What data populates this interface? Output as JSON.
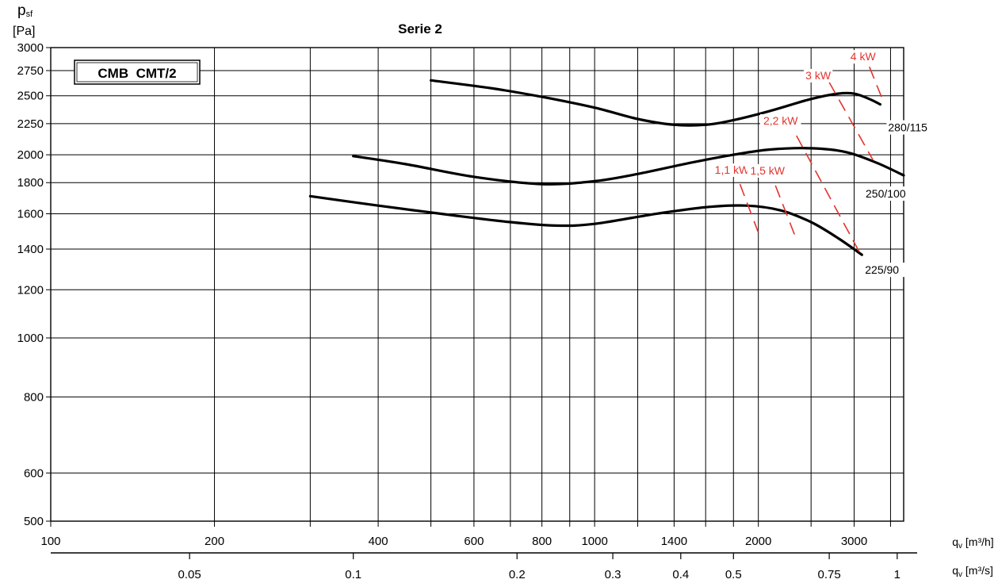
{
  "chart_data": {
    "type": "line",
    "title": "Serie 2",
    "model_label": "CMB  CMT/2",
    "y_label_main": "p",
    "y_label_sub": "sf",
    "y_unit": "[Pa]",
    "x_label_main": "q",
    "x_label_sub": "v",
    "x_unit_primary": " [m³/h]",
    "x_unit_secondary": " [m³/s]",
    "x_scale": "log",
    "y_scale": "log",
    "xlim": [
      100,
      3700
    ],
    "ylim": [
      500,
      3000
    ],
    "grid": true,
    "x_ticks": [
      100,
      200,
      400,
      600,
      800,
      1000,
      1400,
      2000,
      3000
    ],
    "x_tick_labels": [
      "100",
      "200",
      "400",
      "600",
      "800",
      "1000",
      "1400",
      "2000",
      "3000"
    ],
    "x_minor_gridlines": [
      300,
      500,
      700,
      900,
      1200,
      1600,
      1800,
      2500,
      3500
    ],
    "y_ticks": [
      500,
      600,
      800,
      1000,
      1200,
      1400,
      1600,
      1800,
      2000,
      2250,
      2500,
      2750,
      3000
    ],
    "y_tick_labels": [
      "500",
      "600",
      "800",
      "1000",
      "1200",
      "1400",
      "1600",
      "1800",
      "2000",
      "2250",
      "2500",
      "2750",
      "3000"
    ],
    "x2_ticks_m3s": [
      0.05,
      0.1,
      0.2,
      0.3,
      0.4,
      0.5,
      0.75,
      1
    ],
    "x2_tick_labels": [
      "0.05",
      "0.1",
      "0.2",
      "0.3",
      "0.4",
      "0.5",
      "0.75",
      "1"
    ],
    "series": [
      {
        "name": "280/115",
        "x": [
          500,
          650,
          800,
          1000,
          1200,
          1400,
          1600,
          1800,
          2100,
          2500,
          2800,
          3000,
          3200,
          3350
        ],
        "y": [
          2650,
          2570,
          2490,
          2390,
          2290,
          2240,
          2240,
          2280,
          2360,
          2470,
          2520,
          2520,
          2470,
          2420
        ]
      },
      {
        "name": "250/100",
        "x": [
          360,
          450,
          600,
          800,
          1000,
          1200,
          1500,
          1800,
          2100,
          2500,
          2900,
          3300,
          3700
        ],
        "y": [
          1990,
          1930,
          1840,
          1790,
          1810,
          1860,
          1940,
          2000,
          2040,
          2050,
          2020,
          1940,
          1850
        ]
      },
      {
        "name": "225/90",
        "x": [
          300,
          400,
          550,
          700,
          850,
          1000,
          1300,
          1600,
          1900,
          2200,
          2500,
          2800,
          3100
        ],
        "y": [
          1710,
          1650,
          1590,
          1550,
          1530,
          1540,
          1600,
          1640,
          1650,
          1620,
          1550,
          1460,
          1370
        ]
      }
    ],
    "power_lines": [
      {
        "label": "1,1 kW",
        "x": [
          1850,
          2000
        ],
        "y": [
          1790,
          1490
        ]
      },
      {
        "label": "1,5 kW",
        "x": [
          2150,
          2330
        ],
        "y": [
          1780,
          1480
        ]
      },
      {
        "label": "2,2 kW",
        "x": [
          2350,
          3100
        ],
        "y": [
          2150,
          1360
        ]
      },
      {
        "label": "3 kW",
        "x": [
          2700,
          3250
        ],
        "y": [
          2630,
          1960
        ]
      },
      {
        "label": "4 kW",
        "x": [
          3200,
          3380
        ],
        "y": [
          2790,
          2470
        ]
      }
    ],
    "kw_color": "#e2342f"
  }
}
